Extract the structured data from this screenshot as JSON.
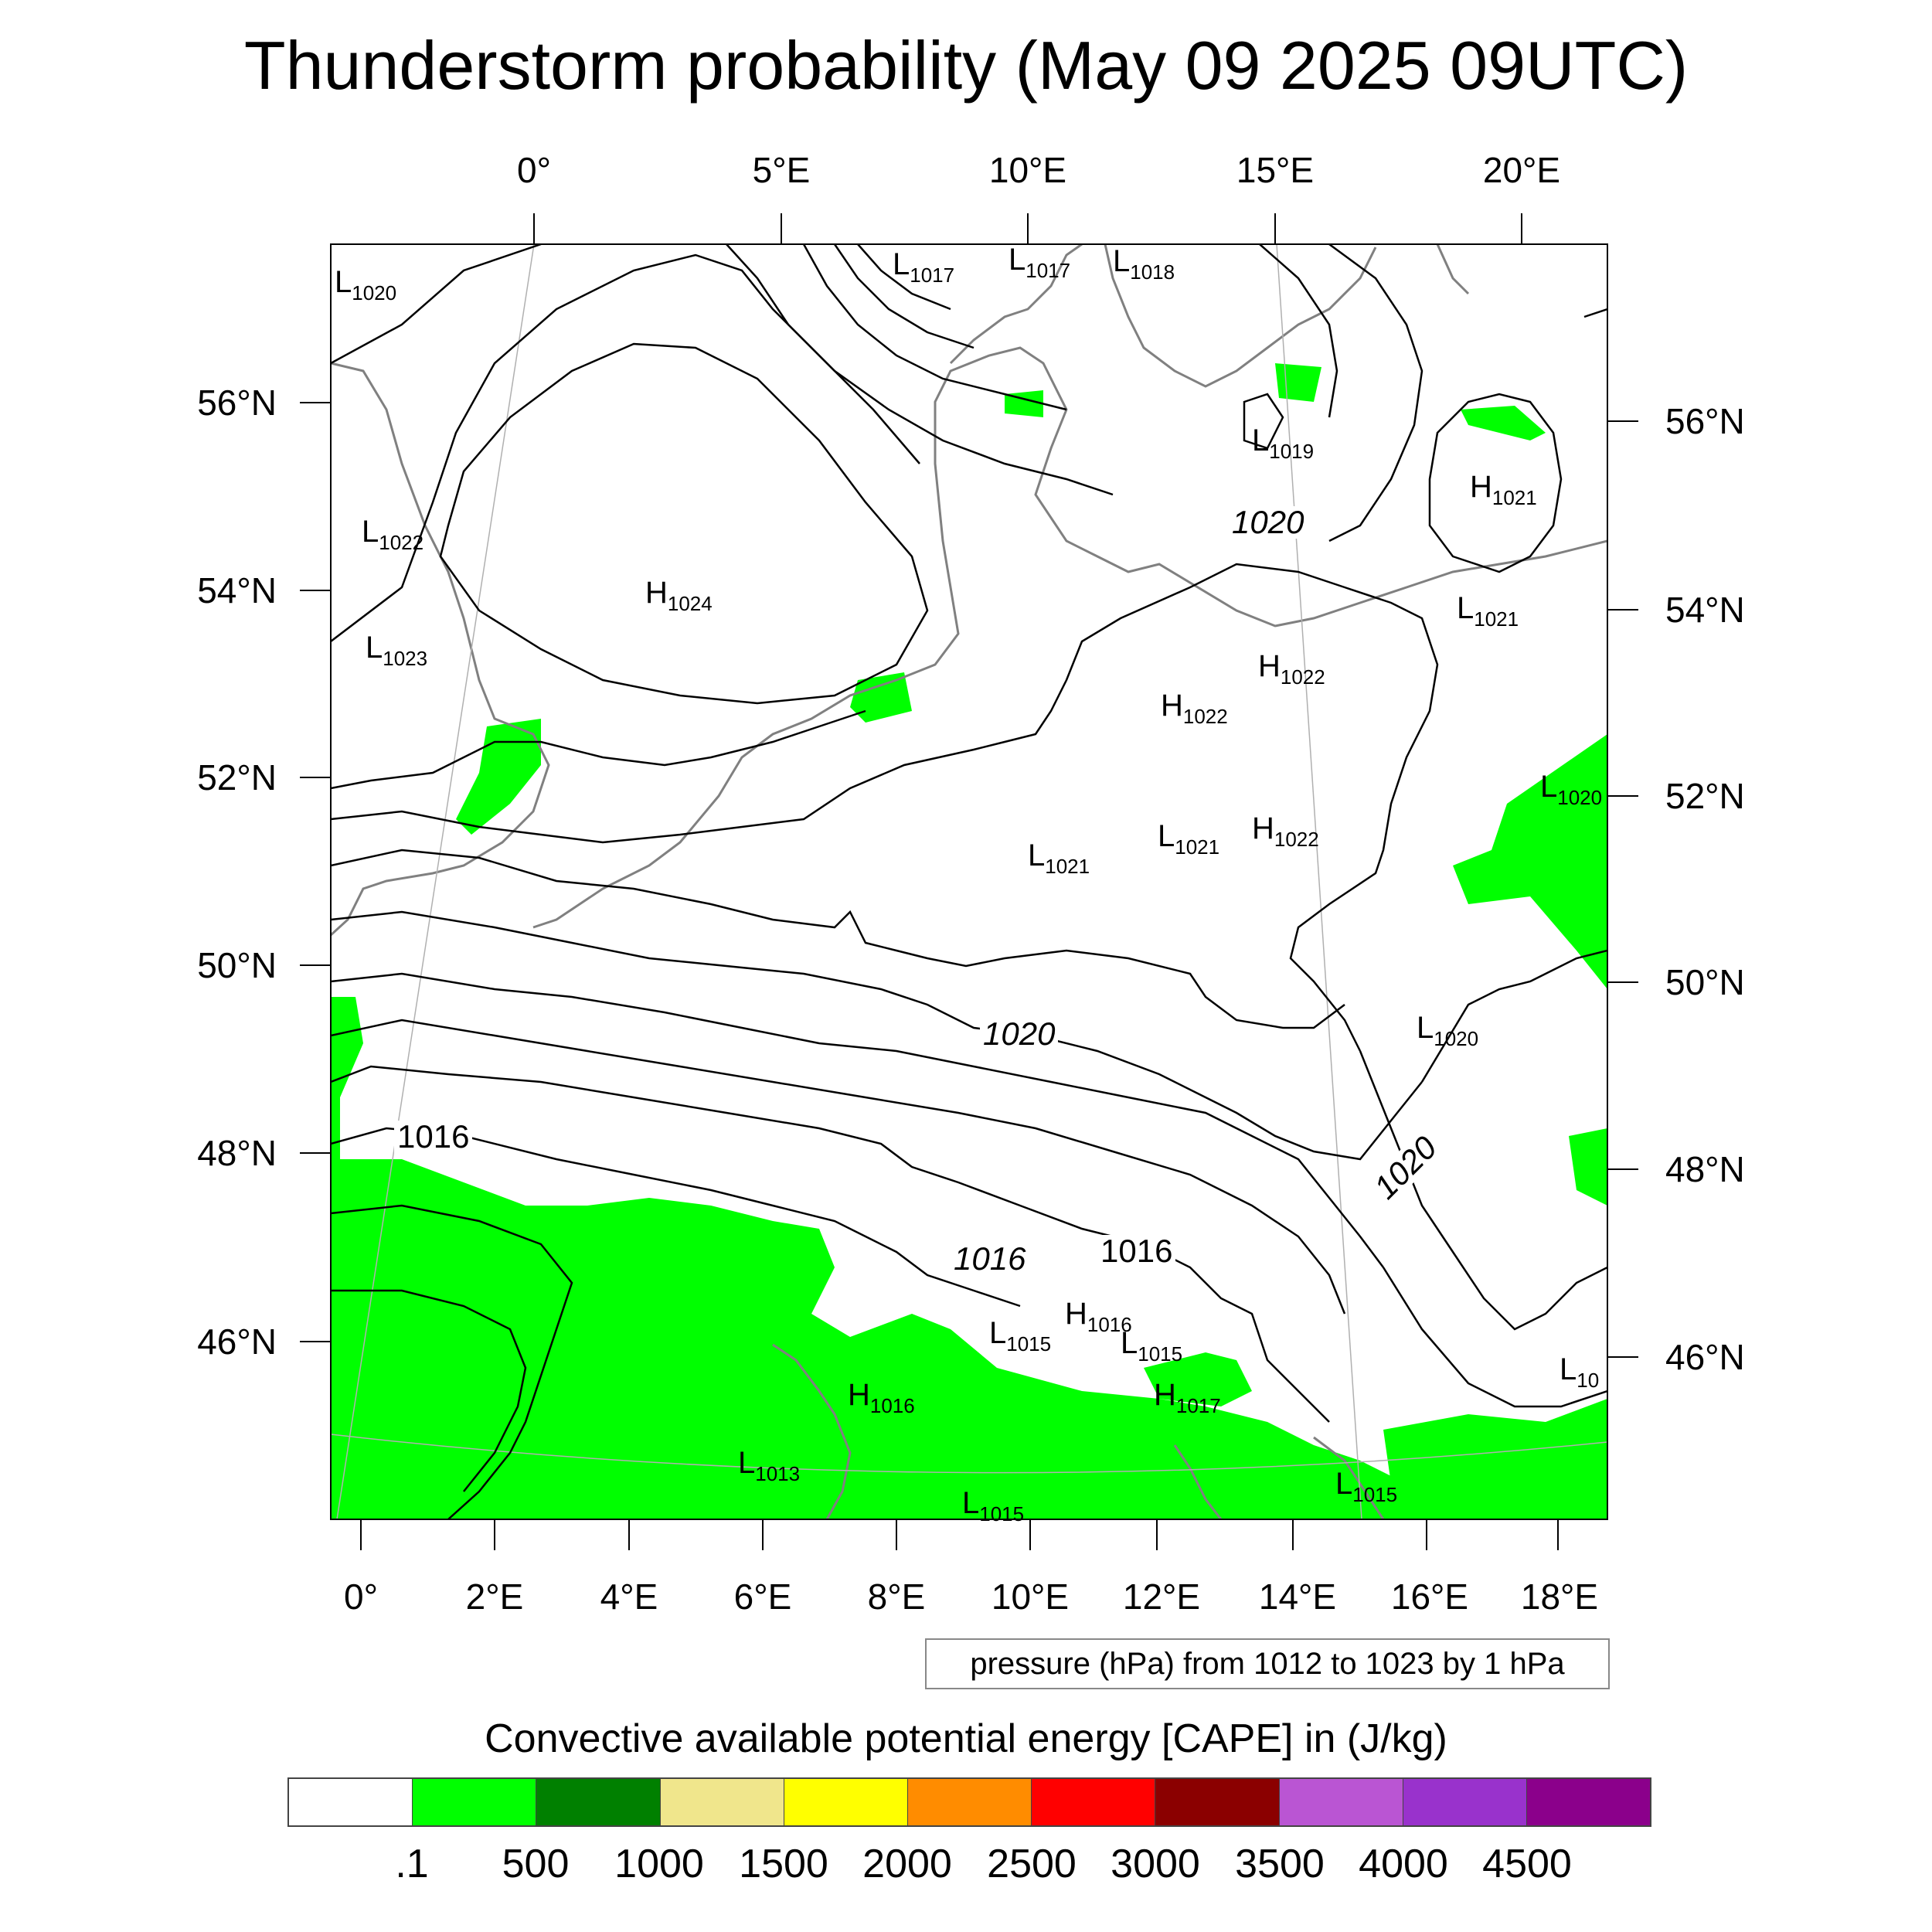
{
  "title": "Thunderstorm probability (May 09 2025 09UTC)",
  "map": {
    "lon_labels_top": [
      {
        "label": "0°",
        "lon": 0
      },
      {
        "label": "5°E",
        "lon": 5
      },
      {
        "label": "10°E",
        "lon": 10
      },
      {
        "label": "15°E",
        "lon": 15
      },
      {
        "label": "20°E",
        "lon": 20
      }
    ],
    "lon_labels_bottom": [
      {
        "label": "0°",
        "lon": 0
      },
      {
        "label": "2°E",
        "lon": 2
      },
      {
        "label": "4°E",
        "lon": 4
      },
      {
        "label": "6°E",
        "lon": 6
      },
      {
        "label": "8°E",
        "lon": 8
      },
      {
        "label": "10°E",
        "lon": 10
      },
      {
        "label": "12°E",
        "lon": 12
      },
      {
        "label": "14°E",
        "lon": 14
      },
      {
        "label": "16°E",
        "lon": 16
      },
      {
        "label": "18°E",
        "lon": 18
      }
    ],
    "lat_labels_left": [
      {
        "label": "56°N",
        "lat": 56
      },
      {
        "label": "54°N",
        "lat": 54
      },
      {
        "label": "52°N",
        "lat": 52
      },
      {
        "label": "50°N",
        "lat": 50
      },
      {
        "label": "48°N",
        "lat": 48
      },
      {
        "label": "46°N",
        "lat": 46
      }
    ],
    "lat_labels_right": [
      {
        "label": "56°N",
        "lat": 56
      },
      {
        "label": "54°N",
        "lat": 54
      },
      {
        "label": "52°N",
        "lat": 52
      },
      {
        "label": "50°N",
        "lat": 50
      },
      {
        "label": "48°N",
        "lat": 48
      },
      {
        "label": "46°N",
        "lat": 46
      }
    ],
    "pressure_systems": [
      {
        "type": "L",
        "value": "1020",
        "lon": -1.3,
        "lat": 57.5
      },
      {
        "type": "L",
        "value": "1017",
        "lon": 7.3,
        "lat": 57.8
      },
      {
        "type": "L",
        "value": "1017",
        "lon": 9.8,
        "lat": 57.8
      },
      {
        "type": "L",
        "value": "1018",
        "lon": 11.6,
        "lat": 57.9
      },
      {
        "type": "L",
        "value": "1022",
        "lon": -1.2,
        "lat": 55.0
      },
      {
        "type": "H",
        "value": "1024",
        "lon": 2.0,
        "lat": 54.0
      },
      {
        "type": "L",
        "value": "1023",
        "lon": -1.0,
        "lat": 53.5
      },
      {
        "type": "L",
        "value": "1019",
        "lon": 14.3,
        "lat": 55.7
      },
      {
        "type": "H",
        "value": "1021",
        "lon": 18.3,
        "lat": 55.5
      },
      {
        "type": "L",
        "value": "1021",
        "lon": 17.8,
        "lat": 54.0
      },
      {
        "type": "H",
        "value": "1022",
        "lon": 14.8,
        "lat": 53.4
      },
      {
        "type": "H",
        "value": "1022",
        "lon": 12.5,
        "lat": 53.0
      },
      {
        "type": "L",
        "value": "1020",
        "lon": 19.2,
        "lat": 52.0
      },
      {
        "type": "L",
        "value": "1021",
        "lon": 12.0,
        "lat": 51.4
      },
      {
        "type": "H",
        "value": "1022",
        "lon": 13.8,
        "lat": 51.5
      },
      {
        "type": "L",
        "value": "1021",
        "lon": 10.0,
        "lat": 51.2
      },
      {
        "type": "L",
        "value": "1020",
        "lon": 16.3,
        "lat": 49.7
      },
      {
        "type": "L",
        "value": "1015",
        "lon": 9.4,
        "lat": 45.8
      },
      {
        "type": "H",
        "value": "1016",
        "lon": 10.7,
        "lat": 46.0
      },
      {
        "type": "L",
        "value": "1015",
        "lon": 11.8,
        "lat": 45.7
      },
      {
        "type": "H",
        "value": "1016",
        "lon": 7.2,
        "lat": 45.2
      },
      {
        "type": "H",
        "value": "1017",
        "lon": 12.0,
        "lat": 45.2
      },
      {
        "type": "L",
        "value": "1013",
        "lon": 5.8,
        "lat": 44.6
      },
      {
        "type": "L",
        "value": "1015",
        "lon": 9.1,
        "lat": 44.3
      },
      {
        "type": "L",
        "value": "1015",
        "lon": 14.8,
        "lat": 44.4
      },
      {
        "type": "L",
        "value": "10",
        "lon": 18.2,
        "lat": 45.5
      }
    ],
    "isobar_labels": [
      {
        "text": "1020",
        "lon": 14.3,
        "lat": 55.0
      },
      {
        "text": "1020",
        "lon": 9.3,
        "lat": 49.6
      },
      {
        "text": "1020",
        "lon": 15.0,
        "lat": 48.2
      },
      {
        "text": "1016",
        "lon": 0.8,
        "lat": 48.2
      },
      {
        "text": "1016",
        "lon": 9.0,
        "lat": 47.0
      },
      {
        "text": "1016",
        "lon": 11.0,
        "lat": 47.0
      }
    ]
  },
  "pressure_legend": "pressure (hPa) from 1012 to 1023 by 1 hPa",
  "colorbar": {
    "title": "Convective available potential energy [CAPE] in (J/kg)",
    "colors": [
      "#ffffff",
      "#00ff00",
      "#008000",
      "#f0e68c",
      "#ffff00",
      "#ff8c00",
      "#ff0000",
      "#8b0000",
      "#ba55d3",
      "#9932cc",
      "#8b008b"
    ],
    "labels": [
      ".1",
      "500",
      "1000",
      "1500",
      "2000",
      "2500",
      "3000",
      "3500",
      "4000",
      "4500"
    ]
  }
}
